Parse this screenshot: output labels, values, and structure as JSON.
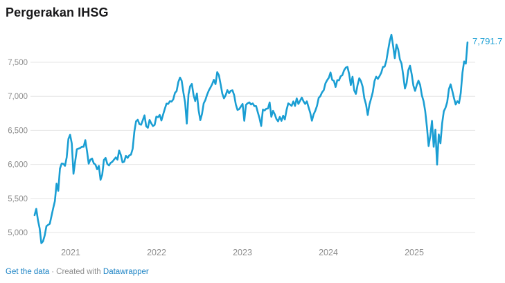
{
  "header": {
    "title": "Pergerakan IHSG"
  },
  "chart_data": {
    "type": "line",
    "title": "Pergerakan IHSG",
    "series_name": "IHSG",
    "line_color": "#1a9ed3",
    "grid_color": "#e5e5e5",
    "axis_label_color": "#8d8d8d",
    "grid": "horizontal-only",
    "legend": "none",
    "x_ticks": [
      2021,
      2022,
      2023,
      2024,
      2025
    ],
    "x_tick_labels": [
      "2021",
      "2022",
      "2023",
      "2024",
      "2025"
    ],
    "y_ticks": [
      5000,
      5500,
      6000,
      6500,
      7000,
      7500
    ],
    "y_tick_labels": [
      "5,000",
      "5,500",
      "6,000",
      "6,500",
      "7,000",
      "7,500"
    ],
    "ylim": [
      4800,
      7950
    ],
    "x_start": 2020.58,
    "x_end": 2025.62,
    "end_label": "7,791.7",
    "last_value": 7791.7,
    "values": [
      5255,
      5347,
      5180,
      5060,
      4843,
      4870,
      4958,
      5093,
      5112,
      5128,
      5242,
      5356,
      5461,
      5719,
      5612,
      5938,
      6012,
      6008,
      5979,
      6105,
      6373,
      6435,
      6307,
      5862,
      6042,
      6222,
      6232,
      6242,
      6259,
      6258,
      6356,
      6196,
      6011,
      6070,
      6086,
      6016,
      5996,
      5928,
      5978,
      5774,
      5849,
      6065,
      6095,
      6007,
      5985,
      6023,
      6039,
      6072,
      6102,
      6070,
      6203,
      6139,
      6030,
      6041,
      6126,
      6095,
      6133,
      6144,
      6229,
      6481,
      6633,
      6656,
      6591,
      6582,
      6651,
      6720,
      6561,
      6538,
      6653,
      6602,
      6563,
      6581,
      6701,
      6693,
      6726,
      6645,
      6731,
      6815,
      6892,
      6888,
      6928,
      6922,
      6955,
      7049,
      7078,
      7210,
      7275,
      7226,
      7056,
      6910,
      6600,
      7026,
      7148,
      7182,
      7019,
      6930,
      7042,
      6795,
      6650,
      6740,
      6896,
      6947,
      7023,
      7084,
      7129,
      7178,
      7242,
      7179,
      7355,
      7310,
      7178,
      7040,
      6970,
      7017,
      7091,
      7045,
      7081,
      7089,
      7019,
      6880,
      6800,
      6812,
      6850,
      6888,
      6641,
      6874,
      6898,
      6911,
      6880,
      6895,
      6856,
      6857,
      6765,
      6678,
      6565,
      6805,
      6792,
      6818,
      6821,
      6910,
      6700,
      6787,
      6737,
      6667,
      6633,
      6698,
      6640,
      6716,
      6661,
      6800,
      6896,
      6880,
      6860,
      6925,
      6859,
      6970,
      6888,
      6935,
      6982,
      6927,
      6888,
      6926,
      6840,
      6758,
      6642,
      6735,
      6788,
      6860,
      6977,
      7004,
      7059,
      7091,
      7190,
      7237,
      7273,
      7350,
      7241,
      7227,
      7137,
      7238,
      7235,
      7295,
      7311,
      7381,
      7421,
      7433,
      7328,
      7166,
      7287,
      7087,
      7036,
      7167,
      7266,
      7222,
      7140,
      6970,
      6880,
      6726,
      6880,
      6967,
      7064,
      7224,
      7288,
      7256,
      7297,
      7347,
      7432,
      7436,
      7522,
      7670,
      7812,
      7905,
      7743,
      7560,
      7760,
      7690,
      7544,
      7480,
      7308,
      7114,
      7195,
      7383,
      7450,
      7325,
      7157,
      7080,
      7164,
      7230,
      7166,
      7016,
      6930,
      6780,
      6550,
      6270,
      6420,
      6640,
      6258,
      6510,
      5996,
      6440,
      6310,
      6602,
      6781,
      6832,
      6916,
      7106,
      7176,
      7080,
      6974,
      6880,
      6928,
      6900,
      7047,
      7344,
      7512,
      7480,
      7791.7
    ]
  },
  "footer": {
    "get_data": "Get the data",
    "separator": "·",
    "created_with": "Created with",
    "brand": "Datawrapper",
    "link_color": "#1a82c4"
  }
}
